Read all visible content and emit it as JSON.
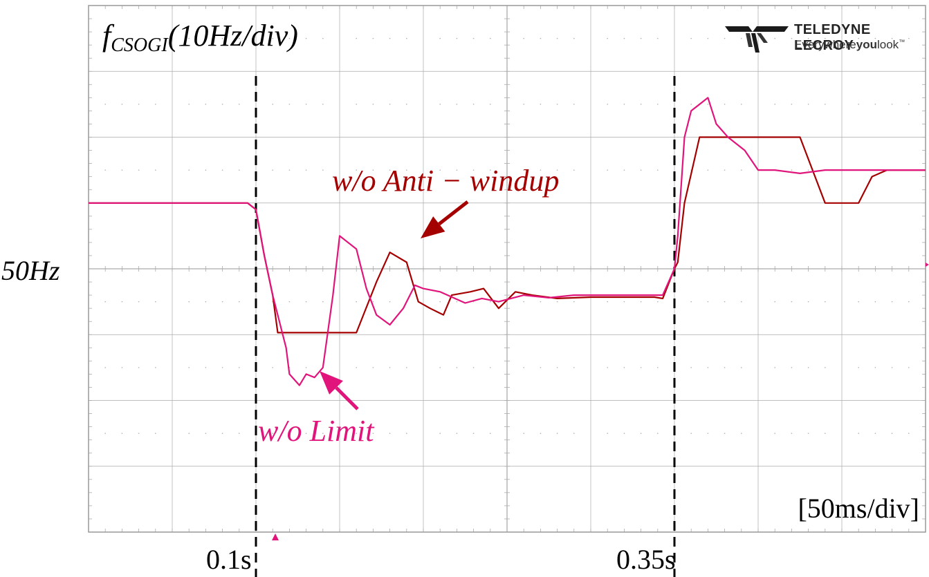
{
  "chart_data": {
    "type": "line",
    "title_var": "f",
    "title_sub": "CSOGI",
    "title_rest": "(10Hz/div)",
    "ylabel": "50Hz",
    "y_ref": 50,
    "timebase": "[50ms/div]",
    "xlim": [
      0,
      0.5
    ],
    "ylim": [
      10,
      90
    ],
    "grid": true,
    "x_ticks": [
      {
        "label": "0.1s",
        "value": 0.1
      },
      {
        "label": "0.35s",
        "value": 0.35
      }
    ],
    "markers": [
      0.1,
      0.35
    ],
    "trigger_time": 0.1,
    "series": [
      {
        "name": "w/o Anti − windup",
        "color": "#a50000",
        "x": [
          0,
          0.085,
          0.095,
          0.1,
          0.105,
          0.11,
          0.113,
          0.134,
          0.16,
          0.172,
          0.18,
          0.19,
          0.197,
          0.204,
          0.212,
          0.217,
          0.228,
          0.236,
          0.245,
          0.255,
          0.265,
          0.28,
          0.3,
          0.325,
          0.338,
          0.343,
          0.35,
          0.352,
          0.356,
          0.365,
          0.375,
          0.425,
          0.44,
          0.452,
          0.46,
          0.468,
          0.477,
          0.5
        ],
        "y": [
          60,
          60,
          60,
          59,
          52,
          46,
          40.3,
          40.3,
          40.3,
          48,
          52.5,
          51,
          45,
          44,
          43,
          46,
          46.5,
          47,
          44,
          46.5,
          46,
          45.5,
          45.7,
          45.7,
          45.7,
          45.5,
          50,
          51,
          60,
          70,
          70,
          70,
          60,
          60,
          60,
          64,
          65,
          65
        ]
      },
      {
        "name": "w/o Limit",
        "color": "#e0147a",
        "x": [
          0,
          0.085,
          0.095,
          0.1,
          0.105,
          0.11,
          0.118,
          0.12,
          0.126,
          0.13,
          0.135,
          0.14,
          0.146,
          0.15,
          0.16,
          0.166,
          0.172,
          0.18,
          0.188,
          0.195,
          0.2,
          0.21,
          0.225,
          0.235,
          0.245,
          0.26,
          0.275,
          0.29,
          0.3,
          0.325,
          0.338,
          0.343,
          0.35,
          0.352,
          0.356,
          0.36,
          0.37,
          0.375,
          0.382,
          0.392,
          0.4,
          0.41,
          0.425,
          0.44,
          0.5
        ],
        "y": [
          60,
          60,
          60,
          59,
          52,
          46,
          38,
          34,
          32.3,
          34,
          33.5,
          35,
          46,
          55,
          53,
          47,
          43,
          41.5,
          44,
          47.5,
          47,
          46.5,
          44.8,
          45.5,
          45,
          46,
          45.6,
          46,
          46,
          46,
          46,
          46,
          50,
          55,
          70,
          74,
          76,
          72,
          70,
          68,
          65,
          65,
          64.5,
          65,
          65
        ]
      }
    ],
    "annotations": [
      {
        "text": "w/o Anti − windup",
        "series": 0
      },
      {
        "text": "w/o Limit",
        "series": 1
      }
    ]
  },
  "logo": {
    "name": "TELEDYNE LECROY",
    "tag_pre": "Everywhere",
    "tag_bold": "you",
    "tag_post": "look",
    "tm": "™"
  },
  "colors": {
    "grid": "#aaaaaa",
    "frame": "#999999",
    "trigger": "#e0147a"
  }
}
